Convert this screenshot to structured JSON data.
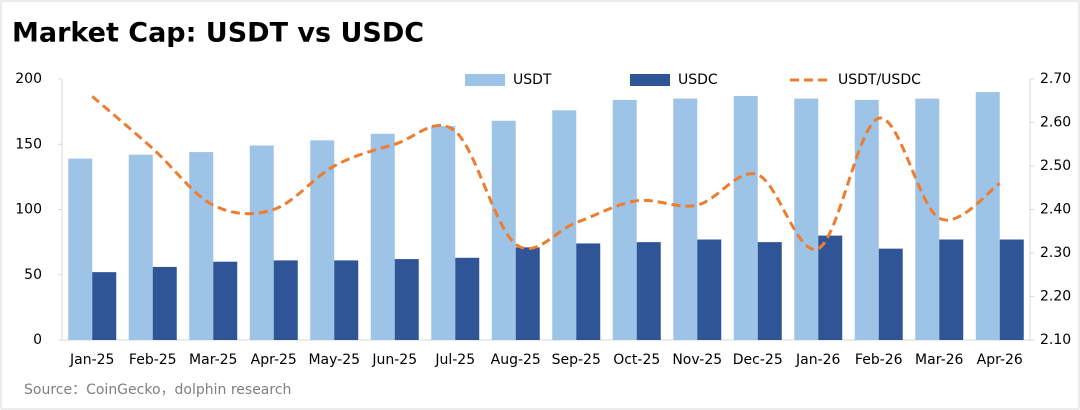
{
  "chart_data": {
    "type": "bar-line",
    "title": "Market Cap: USDT vs USDC",
    "source": "Source：CoinGecko，dolphin research",
    "categories": [
      "Jan-25",
      "Feb-25",
      "Mar-25",
      "Apr-25",
      "May-25",
      "Jun-25",
      "Jul-25",
      "Aug-25",
      "Sep-25",
      "Oct-25",
      "Nov-25",
      "Dec-25",
      "Jan-26",
      "Feb-26",
      "Mar-26",
      "Apr-26"
    ],
    "series": [
      {
        "name": "USDT",
        "color": "#9dc3e6",
        "type": "bar",
        "values": [
          139,
          142,
          144,
          149,
          153,
          158,
          164,
          168,
          176,
          184,
          185,
          187,
          185,
          184,
          185,
          190
        ]
      },
      {
        "name": "USDC",
        "color": "#2f5597",
        "type": "bar",
        "values": [
          52,
          56,
          60,
          61,
          61,
          62,
          63,
          71,
          74,
          75,
          77,
          75,
          80,
          70,
          77,
          77
        ]
      },
      {
        "name": "USDT/USDC",
        "color": "#ed7d31",
        "type": "line",
        "axis": "y2",
        "values": [
          2.66,
          2.54,
          2.41,
          2.4,
          2.5,
          2.55,
          2.58,
          2.32,
          2.37,
          2.42,
          2.41,
          2.48,
          2.31,
          2.61,
          2.38,
          2.46
        ]
      }
    ],
    "ylim": [
      0,
      200
    ],
    "yticks": [
      0,
      50,
      100,
      150,
      200
    ],
    "y2lim": [
      2.1,
      2.7
    ],
    "y2ticks": [
      {
        "value": 2.1,
        "label": "2.10"
      },
      {
        "value": 2.2,
        "label": "2.20"
      },
      {
        "value": 2.3,
        "label": "2.30"
      },
      {
        "value": 2.4,
        "label": "2.40"
      },
      {
        "value": 2.5,
        "label": "2.50"
      },
      {
        "value": 2.6,
        "label": "2.60"
      },
      {
        "value": 2.7,
        "label": "2.70"
      }
    ],
    "legend": "top"
  }
}
